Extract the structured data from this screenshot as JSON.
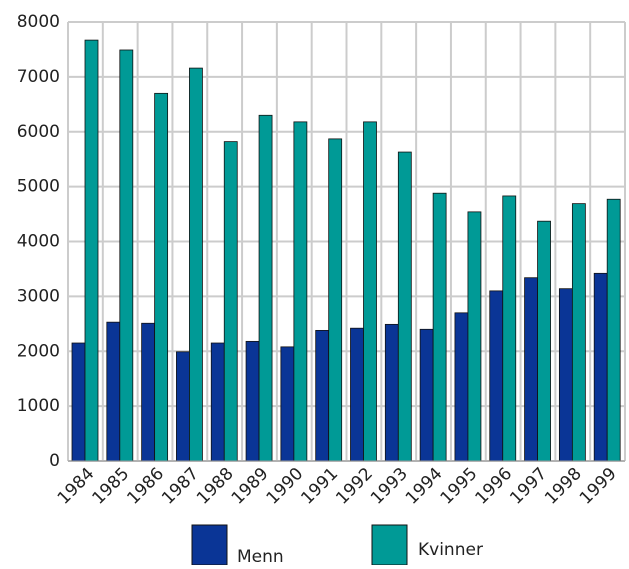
{
  "chart_data": {
    "type": "bar",
    "categories": [
      "1984",
      "1985",
      "1986",
      "1987",
      "1988",
      "1989",
      "1990",
      "1991",
      "1992",
      "1993",
      "1994",
      "1995",
      "1996",
      "1997",
      "1998",
      "1999"
    ],
    "series": [
      {
        "name": "Menn",
        "color": "#0a3596",
        "values": [
          2150,
          2530,
          2510,
          1990,
          2150,
          2180,
          2080,
          2380,
          2420,
          2490,
          2400,
          2700,
          3100,
          3340,
          3140,
          3420
        ]
      },
      {
        "name": "Kvinner",
        "color": "#009a96",
        "values": [
          7670,
          7490,
          6700,
          7160,
          5820,
          6300,
          6180,
          5870,
          6180,
          5630,
          4880,
          4540,
          4830,
          4370,
          4690,
          4770
        ]
      }
    ],
    "ylim": [
      0,
      8000
    ],
    "yticks": [
      0,
      1000,
      2000,
      3000,
      4000,
      5000,
      6000,
      7000,
      8000
    ],
    "grid": true
  }
}
